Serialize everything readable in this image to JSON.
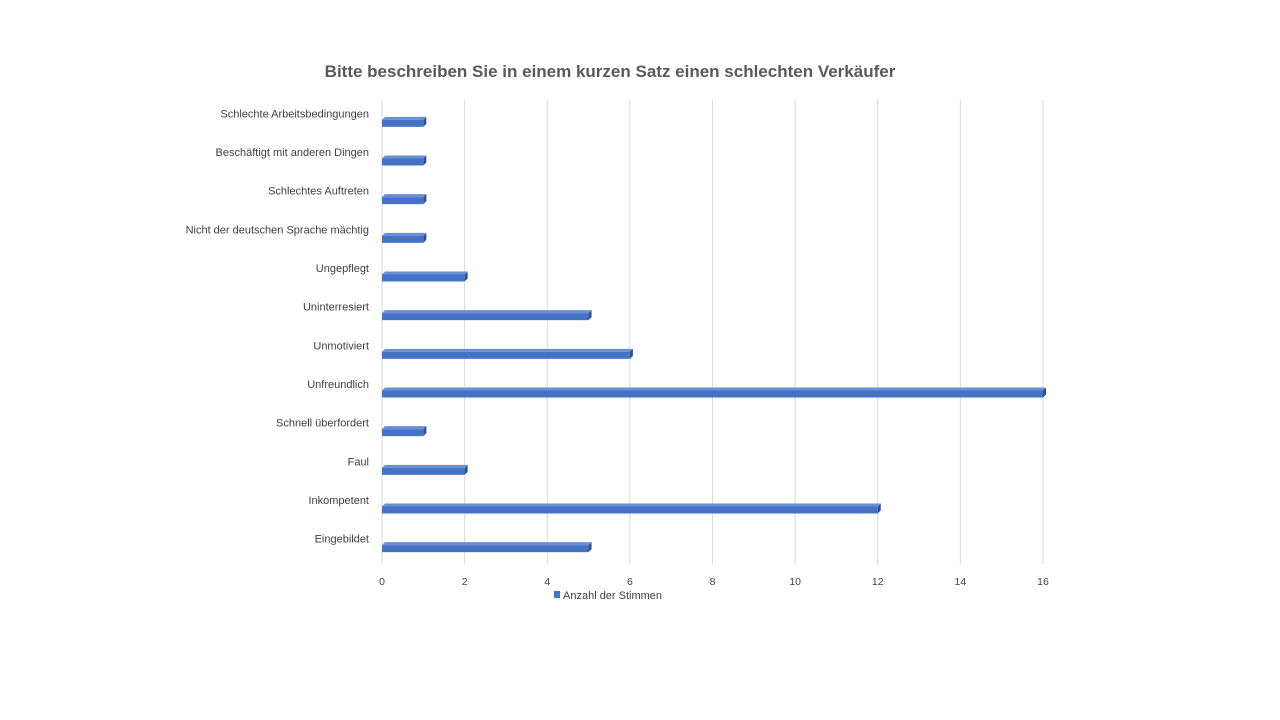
{
  "chart_data": {
    "type": "bar",
    "orientation": "horizontal",
    "title": "Bitte beschreiben Sie in einem kurzen Satz einen schlechten Verkäufer",
    "categories": [
      "Schlechte Arbeitsbedingungen",
      "Beschäftigt mit anderen Dingen",
      "Schlechtes Auftreten",
      "Nicht der deutschen Sprache mächtig",
      "Ungepflegt",
      "Uninterresiert",
      "Unmotiviert",
      "Unfreundlich",
      "Schnell überfordert",
      "Faul",
      "Inkompetent",
      "Eingebildet"
    ],
    "series": [
      {
        "name": "Anzahl der Stimmen",
        "values": [
          1,
          1,
          1,
          1,
          2,
          5,
          6,
          16,
          1,
          2,
          12,
          5
        ]
      }
    ],
    "xlim": [
      0,
      16
    ],
    "xticks": [
      "0",
      "2",
      "4",
      "6",
      "8",
      "10",
      "12",
      "14",
      "16"
    ],
    "grid": true,
    "legend_position": "bottom",
    "colors": {
      "bar": "#4472C4",
      "bar_dark": "#2F4F8F",
      "grid": "#D9D9D9"
    }
  }
}
